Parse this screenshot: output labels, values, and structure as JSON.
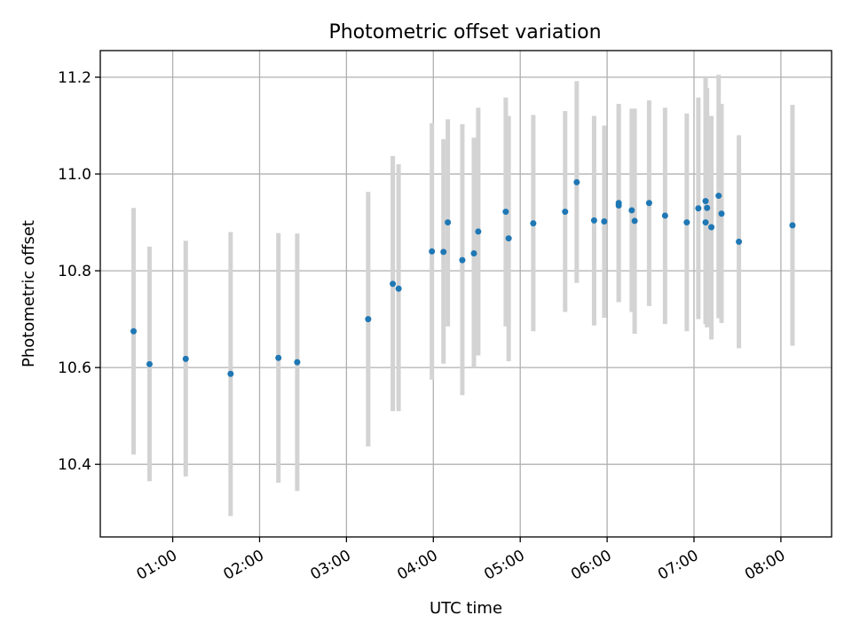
{
  "chart_data": {
    "type": "scatter",
    "title": "Photometric offset variation",
    "xlabel": "UTC time",
    "ylabel": "Photometric offset",
    "xlim": [
      "00:10",
      "08:35"
    ],
    "ylim": [
      10.25,
      11.255
    ],
    "xticks": [
      "01:00",
      "02:00",
      "03:00",
      "04:00",
      "05:00",
      "06:00",
      "07:00",
      "08:00"
    ],
    "yticks": [
      "10.4",
      "10.6",
      "10.8",
      "11.0",
      "11.2"
    ],
    "grid": true,
    "colors": {
      "point": "#1f77b4",
      "errorbar": "#d3d3d3"
    },
    "points": [
      {
        "x": "00:33",
        "y": 10.675,
        "ylow": 10.42,
        "yhigh": 10.93
      },
      {
        "x": "00:44",
        "y": 10.607,
        "ylow": 10.365,
        "yhigh": 10.85
      },
      {
        "x": "01:09",
        "y": 10.618,
        "ylow": 10.375,
        "yhigh": 10.862
      },
      {
        "x": "01:40",
        "y": 10.587,
        "ylow": 10.293,
        "yhigh": 10.88
      },
      {
        "x": "02:13",
        "y": 10.62,
        "ylow": 10.362,
        "yhigh": 10.878
      },
      {
        "x": "02:26",
        "y": 10.611,
        "ylow": 10.345,
        "yhigh": 10.877
      },
      {
        "x": "03:15",
        "y": 10.7,
        "ylow": 10.437,
        "yhigh": 10.963
      },
      {
        "x": "03:32",
        "y": 10.773,
        "ylow": 10.51,
        "yhigh": 11.037
      },
      {
        "x": "03:36",
        "y": 10.763,
        "ylow": 10.51,
        "yhigh": 11.02
      },
      {
        "x": "03:59",
        "y": 10.84,
        "ylow": 10.575,
        "yhigh": 11.105
      },
      {
        "x": "04:07",
        "y": 10.839,
        "ylow": 10.608,
        "yhigh": 11.072
      },
      {
        "x": "04:10",
        "y": 10.9,
        "ylow": 10.685,
        "yhigh": 11.113
      },
      {
        "x": "04:20",
        "y": 10.822,
        "ylow": 10.543,
        "yhigh": 11.103
      },
      {
        "x": "04:28",
        "y": 10.836,
        "ylow": 10.6,
        "yhigh": 11.075
      },
      {
        "x": "04:31",
        "y": 10.881,
        "ylow": 10.625,
        "yhigh": 11.137
      },
      {
        "x": "04:50",
        "y": 10.922,
        "ylow": 10.685,
        "yhigh": 11.158
      },
      {
        "x": "04:52",
        "y": 10.867,
        "ylow": 10.613,
        "yhigh": 11.12
      },
      {
        "x": "05:09",
        "y": 10.898,
        "ylow": 10.675,
        "yhigh": 11.122
      },
      {
        "x": "05:31",
        "y": 10.922,
        "ylow": 10.715,
        "yhigh": 11.13
      },
      {
        "x": "05:39",
        "y": 10.983,
        "ylow": 10.775,
        "yhigh": 11.192
      },
      {
        "x": "05:51",
        "y": 10.904,
        "ylow": 10.687,
        "yhigh": 11.12
      },
      {
        "x": "05:58",
        "y": 10.902,
        "ylow": 10.703,
        "yhigh": 11.1
      },
      {
        "x": "06:08",
        "y": 10.935,
        "ylow": 10.735,
        "yhigh": 11.145
      },
      {
        "x": "06:08",
        "y": 10.94,
        "ylow": 10.735,
        "yhigh": 11.14
      },
      {
        "x": "06:17",
        "y": 10.925,
        "ylow": 10.715,
        "yhigh": 11.135
      },
      {
        "x": "06:19",
        "y": 10.903,
        "ylow": 10.67,
        "yhigh": 11.135
      },
      {
        "x": "06:29",
        "y": 10.94,
        "ylow": 10.727,
        "yhigh": 11.152
      },
      {
        "x": "06:40",
        "y": 10.914,
        "ylow": 10.69,
        "yhigh": 11.137
      },
      {
        "x": "06:55",
        "y": 10.9,
        "ylow": 10.675,
        "yhigh": 11.125
      },
      {
        "x": "07:03",
        "y": 10.929,
        "ylow": 10.7,
        "yhigh": 11.158
      },
      {
        "x": "07:08",
        "y": 10.944,
        "ylow": 10.69,
        "yhigh": 11.2
      },
      {
        "x": "07:08",
        "y": 10.9,
        "ylow": 10.7,
        "yhigh": 11.12
      },
      {
        "x": "07:09",
        "y": 10.93,
        "ylow": 10.683,
        "yhigh": 11.178
      },
      {
        "x": "07:12",
        "y": 10.89,
        "ylow": 10.658,
        "yhigh": 11.12
      },
      {
        "x": "07:17",
        "y": 10.955,
        "ylow": 10.702,
        "yhigh": 11.205
      },
      {
        "x": "07:19",
        "y": 10.918,
        "ylow": 10.692,
        "yhigh": 11.145
      },
      {
        "x": "07:31",
        "y": 10.86,
        "ylow": 10.64,
        "yhigh": 11.08
      },
      {
        "x": "08:08",
        "y": 10.894,
        "ylow": 10.645,
        "yhigh": 11.143
      }
    ]
  }
}
